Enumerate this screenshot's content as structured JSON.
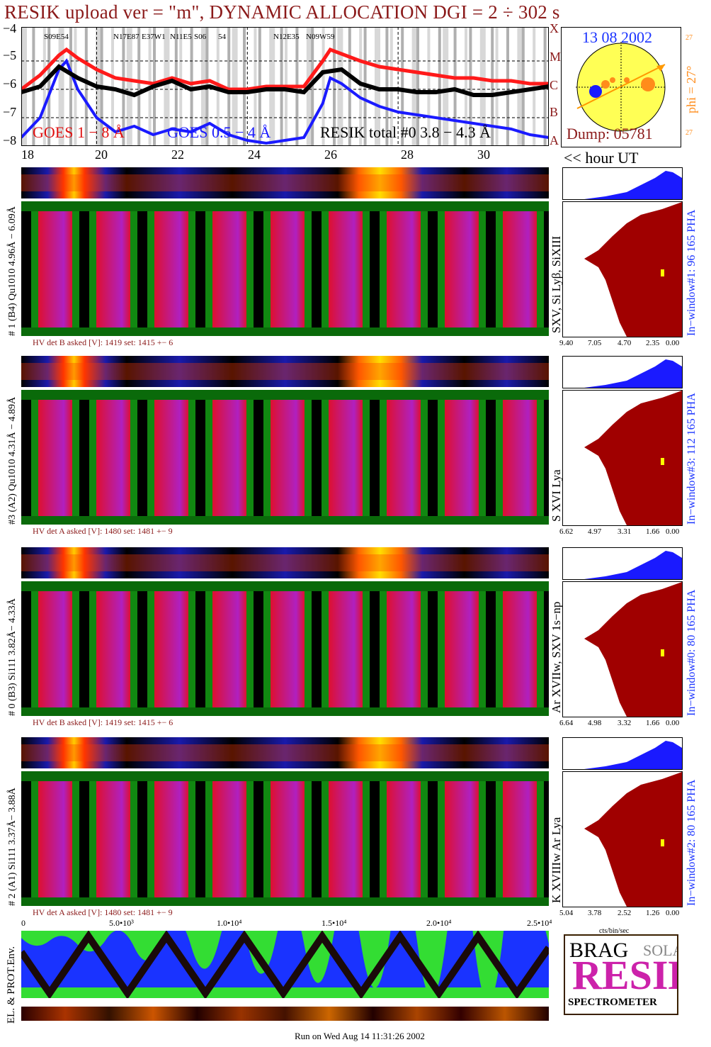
{
  "title": "RESIK upload ver = \"m\", DYNAMIC ALLOCATION  DGI =   2 ÷ 302 s",
  "goes_panel": {
    "y_ticks": [
      "−4",
      "−5",
      "−6",
      "−7",
      "−8"
    ],
    "x_ticks": [
      "18",
      "20",
      "22",
      "24",
      "26",
      "28",
      "30"
    ],
    "right_letters": [
      "X",
      "M",
      "C",
      "B",
      "A"
    ],
    "legend_goes1": "GOES 1 − 8 Å",
    "legend_goes2": "GOES 0.5 − 4 Å",
    "legend_resik": "RESIK total #0  3.8 − 4.3 Å",
    "hour_label": "<< hour UT",
    "region_labels": [
      "S09E54",
      "N17E87",
      "E37W1",
      "N11E5",
      "S06",
      "54",
      "N12E35",
      "N09W59"
    ]
  },
  "sun_panel": {
    "date": "13 08 2002",
    "dump": "Dump: 05781",
    "phi": "phi = 27°",
    "tick_top": "27",
    "tick_bottom": "27"
  },
  "channels": [
    {
      "left_label": "# 1 (B4) Qu1010 4.96Å − 6.09Å",
      "hv": "HV det B asked [V]:  1419 set:  1415  +−    6",
      "right_label": "SXV, Si Lyβ, SiXIII",
      "window": "In−window#1:   96 165 PHA",
      "hist_ticks": [
        "9.40",
        "7.05",
        "4.70",
        "2.35",
        "0.00"
      ]
    },
    {
      "left_label": "#3 (A2) Qu1010  4.31Å − 4.89Å",
      "hv": "HV det A asked [V]:  1480 set:  1481  +−    9",
      "right_label": "S XVI Lya",
      "window": "In−window#3:   112 165 PHA",
      "hist_ticks": [
        "6.62",
        "4.97",
        "3.31",
        "1.66",
        "0.00"
      ]
    },
    {
      "left_label": "# 0 (B3) Si111  3.82Å− 4.33Å",
      "hv": "HV det B asked [V]:  1419 set:  1415  +−    6",
      "right_label": "Ar XVIIw,  SXV 1s−np",
      "window": "In−window#0:   80 165 PHA",
      "hist_ticks": [
        "6.64",
        "4.98",
        "3.32",
        "1.66",
        "0.00"
      ]
    },
    {
      "left_label": "# 2 (A1) Si111  3.37Å− 3.88Å",
      "hv": "HV det A asked [V]:  1480 set:  1481  +−    9",
      "right_label": "K XVIIIw  Ar Lya",
      "window": "In−window#2:   80 165 PHA",
      "hist_ticks": [
        "5.04",
        "3.78",
        "2.52",
        "1.26",
        "0.00"
      ]
    }
  ],
  "bottom_axis": [
    "0",
    "5.0•10³",
    "1.0•10⁴",
    "1.5•10⁴",
    "2.0•10⁴",
    "2.5•10⁴"
  ],
  "cts_label": "cts/bin/sec",
  "env_label": "EL. & PROT.Env.",
  "logo": {
    "resik": "RESIK",
    "bragg": "BRAG",
    "solar": "SOLAR",
    "spectrometer": "SPECTROMETER"
  },
  "footer": "Run on Wed Aug 14 11:31:26 2002",
  "colors": {
    "title": "#8b1a1a",
    "goes_red": "#ff1a1a",
    "goes_blue": "#1a1aff",
    "resik_black": "#000000",
    "spectrum_red": "#e01020",
    "spectrum_purple": "#a020c0",
    "hist_fill": "#a00000",
    "pha_blue": "#1a1aff"
  },
  "chart_data": {
    "type": "line",
    "title": "RESIK upload ver = \"m\", DYNAMIC ALLOCATION  DGI =   2 ÷ 302 s",
    "xlabel": "<< hour UT",
    "ylabel": "",
    "xlim": [
      18,
      32
    ],
    "ylim": [
      -8,
      -3.8
    ],
    "series": [
      {
        "name": "GOES 1 − 8 Å",
        "x": [
          18,
          18.5,
          19,
          19.2,
          19.5,
          20,
          20.5,
          21,
          21.5,
          22,
          22.5,
          23,
          23.5,
          24,
          24.5,
          25,
          25.5,
          26,
          26.2,
          26.5,
          27,
          27.5,
          28,
          28.5,
          29,
          29.5,
          30,
          30.5,
          31,
          31.5,
          32
        ],
        "values": [
          -6.0,
          -5.5,
          -4.8,
          -4.6,
          -4.9,
          -5.3,
          -5.6,
          -5.7,
          -5.8,
          -5.6,
          -5.8,
          -5.7,
          -6.0,
          -6.0,
          -5.9,
          -5.9,
          -5.9,
          -5.0,
          -4.6,
          -4.75,
          -5.0,
          -5.2,
          -5.3,
          -5.4,
          -5.5,
          -5.6,
          -5.6,
          -5.7,
          -5.7,
          -5.8,
          -5.8
        ]
      },
      {
        "name": "GOES 0.5 − 4 Å",
        "x": [
          18,
          18.5,
          19,
          19.2,
          19.5,
          20,
          20.5,
          21,
          21.5,
          22,
          22.5,
          23,
          23.5,
          24,
          24.5,
          25,
          25.5,
          26,
          26.2,
          26.5,
          27,
          27.5,
          28,
          28.5,
          29,
          29.5,
          30,
          30.5,
          31,
          31.5,
          32
        ],
        "values": [
          -7.7,
          -7.0,
          -5.3,
          -5.0,
          -6.0,
          -7.0,
          -7.5,
          -7.3,
          -7.6,
          -7.4,
          -7.5,
          -7.2,
          -7.6,
          -7.8,
          -7.9,
          -7.8,
          -7.7,
          -6.5,
          -5.6,
          -5.8,
          -6.3,
          -6.6,
          -6.8,
          -6.9,
          -7.0,
          -7.1,
          -7.2,
          -7.3,
          -7.4,
          -7.6,
          -7.7
        ]
      },
      {
        "name": "RESIK total #0  3.8 − 4.3 Å",
        "x": [
          18,
          18.5,
          19,
          19.5,
          20,
          20.5,
          21,
          21.5,
          22,
          22.5,
          23,
          23.5,
          24,
          24.5,
          25,
          25.5,
          26,
          26.5,
          27,
          27.5,
          28,
          28.5,
          29,
          29.5,
          30,
          30.5,
          31,
          31.5,
          32
        ],
        "values": [
          -6.1,
          -5.9,
          -5.2,
          -5.6,
          -5.9,
          -6.0,
          -6.2,
          -5.9,
          -5.7,
          -6.0,
          -5.9,
          -6.1,
          -6.1,
          -6.0,
          -6.0,
          -6.1,
          -5.4,
          -5.3,
          -5.8,
          -6.0,
          -6.0,
          -6.1,
          -6.1,
          -6.0,
          -6.2,
          -6.2,
          -6.1,
          -6.0,
          -5.9
        ]
      }
    ]
  }
}
